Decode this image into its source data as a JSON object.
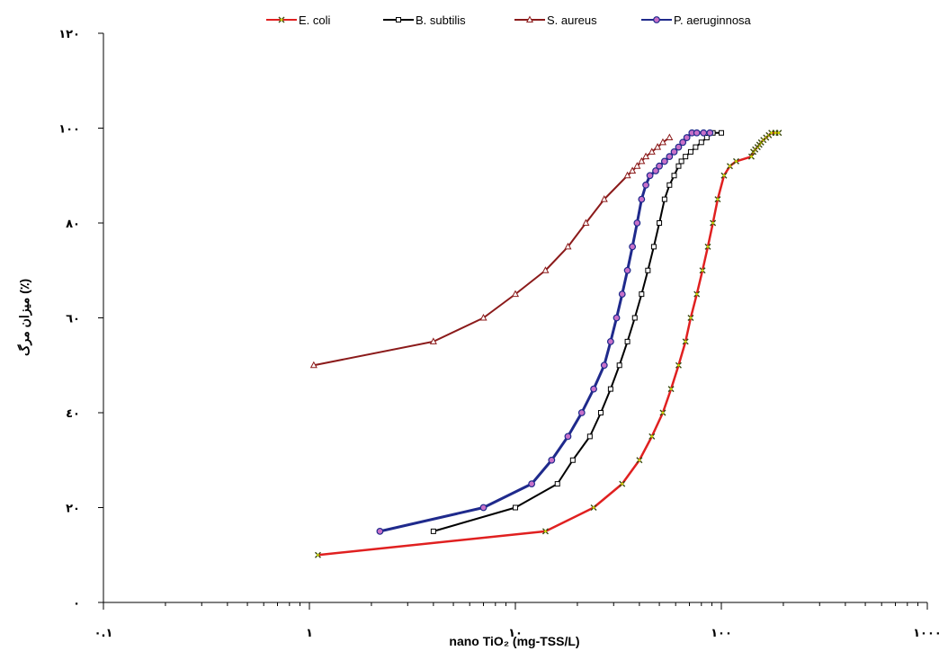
{
  "chart_data": {
    "type": "line",
    "xlabel": "nano TiO₂ (mg-TSS/L)",
    "ylabel": "میزان مرگ (٪)",
    "x_scale": "log",
    "xlim": [
      0.1,
      1000
    ],
    "ylim": [
      0,
      120
    ],
    "x_ticks": [
      0.1,
      1,
      10,
      100,
      1000
    ],
    "x_tick_labels": [
      "٠.١",
      "١",
      "١٠",
      "١٠٠",
      "١٠٠٠"
    ],
    "y_ticks": [
      0,
      20,
      40,
      60,
      80,
      100,
      120
    ],
    "y_tick_labels": [
      "٠",
      "٢٠",
      "٤٠",
      "٦٠",
      "٨٠",
      "١٠٠",
      "١٢٠"
    ],
    "legend_position": "top",
    "series": [
      {
        "name": "E. coli",
        "color": "#e02020",
        "marker": "star",
        "line_width": 2.5,
        "x": [
          1.1,
          14,
          24,
          33,
          40,
          46,
          52,
          57,
          62,
          67,
          71,
          76,
          81,
          86,
          91,
          96,
          103,
          110,
          118,
          140,
          143,
          146,
          150,
          153,
          156,
          160,
          165,
          170,
          175,
          183,
          190
        ],
        "y": [
          10,
          15,
          20,
          25,
          30,
          35,
          40,
          45,
          50,
          55,
          60,
          65,
          70,
          75,
          80,
          85,
          90,
          92,
          93,
          94,
          95,
          95.5,
          96,
          96.5,
          97,
          97.5,
          98,
          98.5,
          99,
          99,
          99
        ]
      },
      {
        "name": "B. subtilis",
        "color": "#000000",
        "marker": "square",
        "line_width": 2.0,
        "x": [
          4,
          10,
          16,
          19,
          23,
          26,
          29,
          32,
          35,
          38,
          41,
          44,
          47,
          50,
          53,
          56,
          59,
          62,
          64,
          67,
          71,
          75,
          80,
          85,
          91,
          100
        ],
        "y": [
          15,
          20,
          25,
          30,
          35,
          40,
          45,
          50,
          55,
          60,
          65,
          70,
          75,
          80,
          85,
          88,
          90,
          92,
          93,
          94,
          95,
          96,
          97,
          98,
          99,
          99
        ]
      },
      {
        "name": "S. aureus",
        "color": "#8b1a1a",
        "marker": "triangle",
        "line_width": 2.0,
        "x": [
          1.05,
          4,
          7,
          10,
          14,
          18,
          22,
          27,
          35,
          37,
          39,
          41,
          43,
          46,
          49,
          52,
          56
        ],
        "y": [
          50,
          55,
          60,
          65,
          70,
          75,
          80,
          85,
          90,
          91,
          92,
          93,
          94,
          95,
          96,
          97,
          98
        ]
      },
      {
        "name": "P. aeruginnosa",
        "color": "#1f2a8c",
        "marker": "circle",
        "line_width": 3.0,
        "x": [
          2.2,
          7,
          12,
          15,
          18,
          21,
          24,
          27,
          29,
          31,
          33,
          35,
          37,
          39,
          41,
          43,
          45,
          48,
          50,
          53,
          56,
          59,
          62,
          65,
          68,
          72,
          76,
          82,
          88
        ],
        "y": [
          15,
          20,
          25,
          30,
          35,
          40,
          45,
          50,
          55,
          60,
          65,
          70,
          75,
          80,
          85,
          88,
          90,
          91,
          92,
          93,
          94,
          95,
          96,
          97,
          98,
          99,
          99,
          99,
          99
        ]
      }
    ]
  }
}
